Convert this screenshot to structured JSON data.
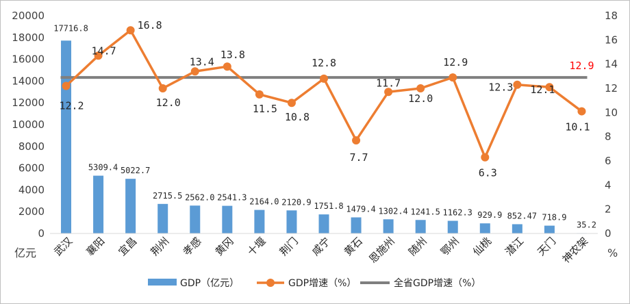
{
  "chart_data": {
    "type": "bar+line",
    "categories": [
      "武汉",
      "襄阳",
      "宜昌",
      "荆州",
      "孝感",
      "黄冈",
      "十堰",
      "荆门",
      "咸宁",
      "黄石",
      "恩施州",
      "随州",
      "鄂州",
      "仙桃",
      "潜江",
      "天门",
      "神农架"
    ],
    "series": [
      {
        "name": "GDP（亿元）",
        "type": "bar",
        "axis": "left",
        "color": "#5b9bd5",
        "values": [
          17716.8,
          5309.4,
          5022.7,
          2715.5,
          2562.0,
          2541.3,
          2164.0,
          2120.9,
          1751.8,
          1479.4,
          1302.4,
          1241.5,
          1162.3,
          929.9,
          852.47,
          718.9,
          35.2
        ],
        "labels": [
          "17716.8",
          "5309.4",
          "5022.7",
          "2715.5",
          "2562.0",
          "2541.3",
          "2164.0",
          "2120.9",
          "1751.8",
          "1479.4",
          "1302.4",
          "1241.5",
          "1162.3",
          "929.9",
          "852.47",
          "718.9",
          "35.2"
        ]
      },
      {
        "name": "GDP增速（%）",
        "type": "line",
        "axis": "right",
        "color": "#ed7d31",
        "values": [
          12.2,
          14.7,
          16.8,
          12.0,
          13.4,
          13.8,
          11.5,
          10.8,
          12.8,
          7.7,
          11.7,
          12.0,
          12.9,
          6.3,
          12.3,
          12.1,
          10.1
        ],
        "labels": [
          "12.2",
          "14.7",
          "16.8",
          "12.0",
          "13.4",
          "13.8",
          "11.5",
          "10.8",
          "12.8",
          "7.7",
          "11.7",
          "12.0",
          "12.9",
          "6.3",
          "12.3",
          "12.1",
          "10.1"
        ]
      },
      {
        "name": "全省GDP增速（%）",
        "type": "line",
        "axis": "right",
        "color": "#7f7f7f",
        "value": 12.9,
        "label": "12.9",
        "label_color": "#ff0000"
      }
    ],
    "ylim_left": [
      0,
      20000
    ],
    "yticks_left": [
      "0",
      "2000",
      "4000",
      "6000",
      "8000",
      "10000",
      "12000",
      "14000",
      "16000",
      "18000",
      "20000"
    ],
    "ylim_right": [
      0,
      18
    ],
    "yticks_right": [
      "0",
      "2",
      "4",
      "6",
      "8",
      "10",
      "12",
      "14",
      "16",
      "18"
    ],
    "left_unit": "亿元",
    "right_unit": "%",
    "grid": false,
    "legend_position": "bottom"
  }
}
